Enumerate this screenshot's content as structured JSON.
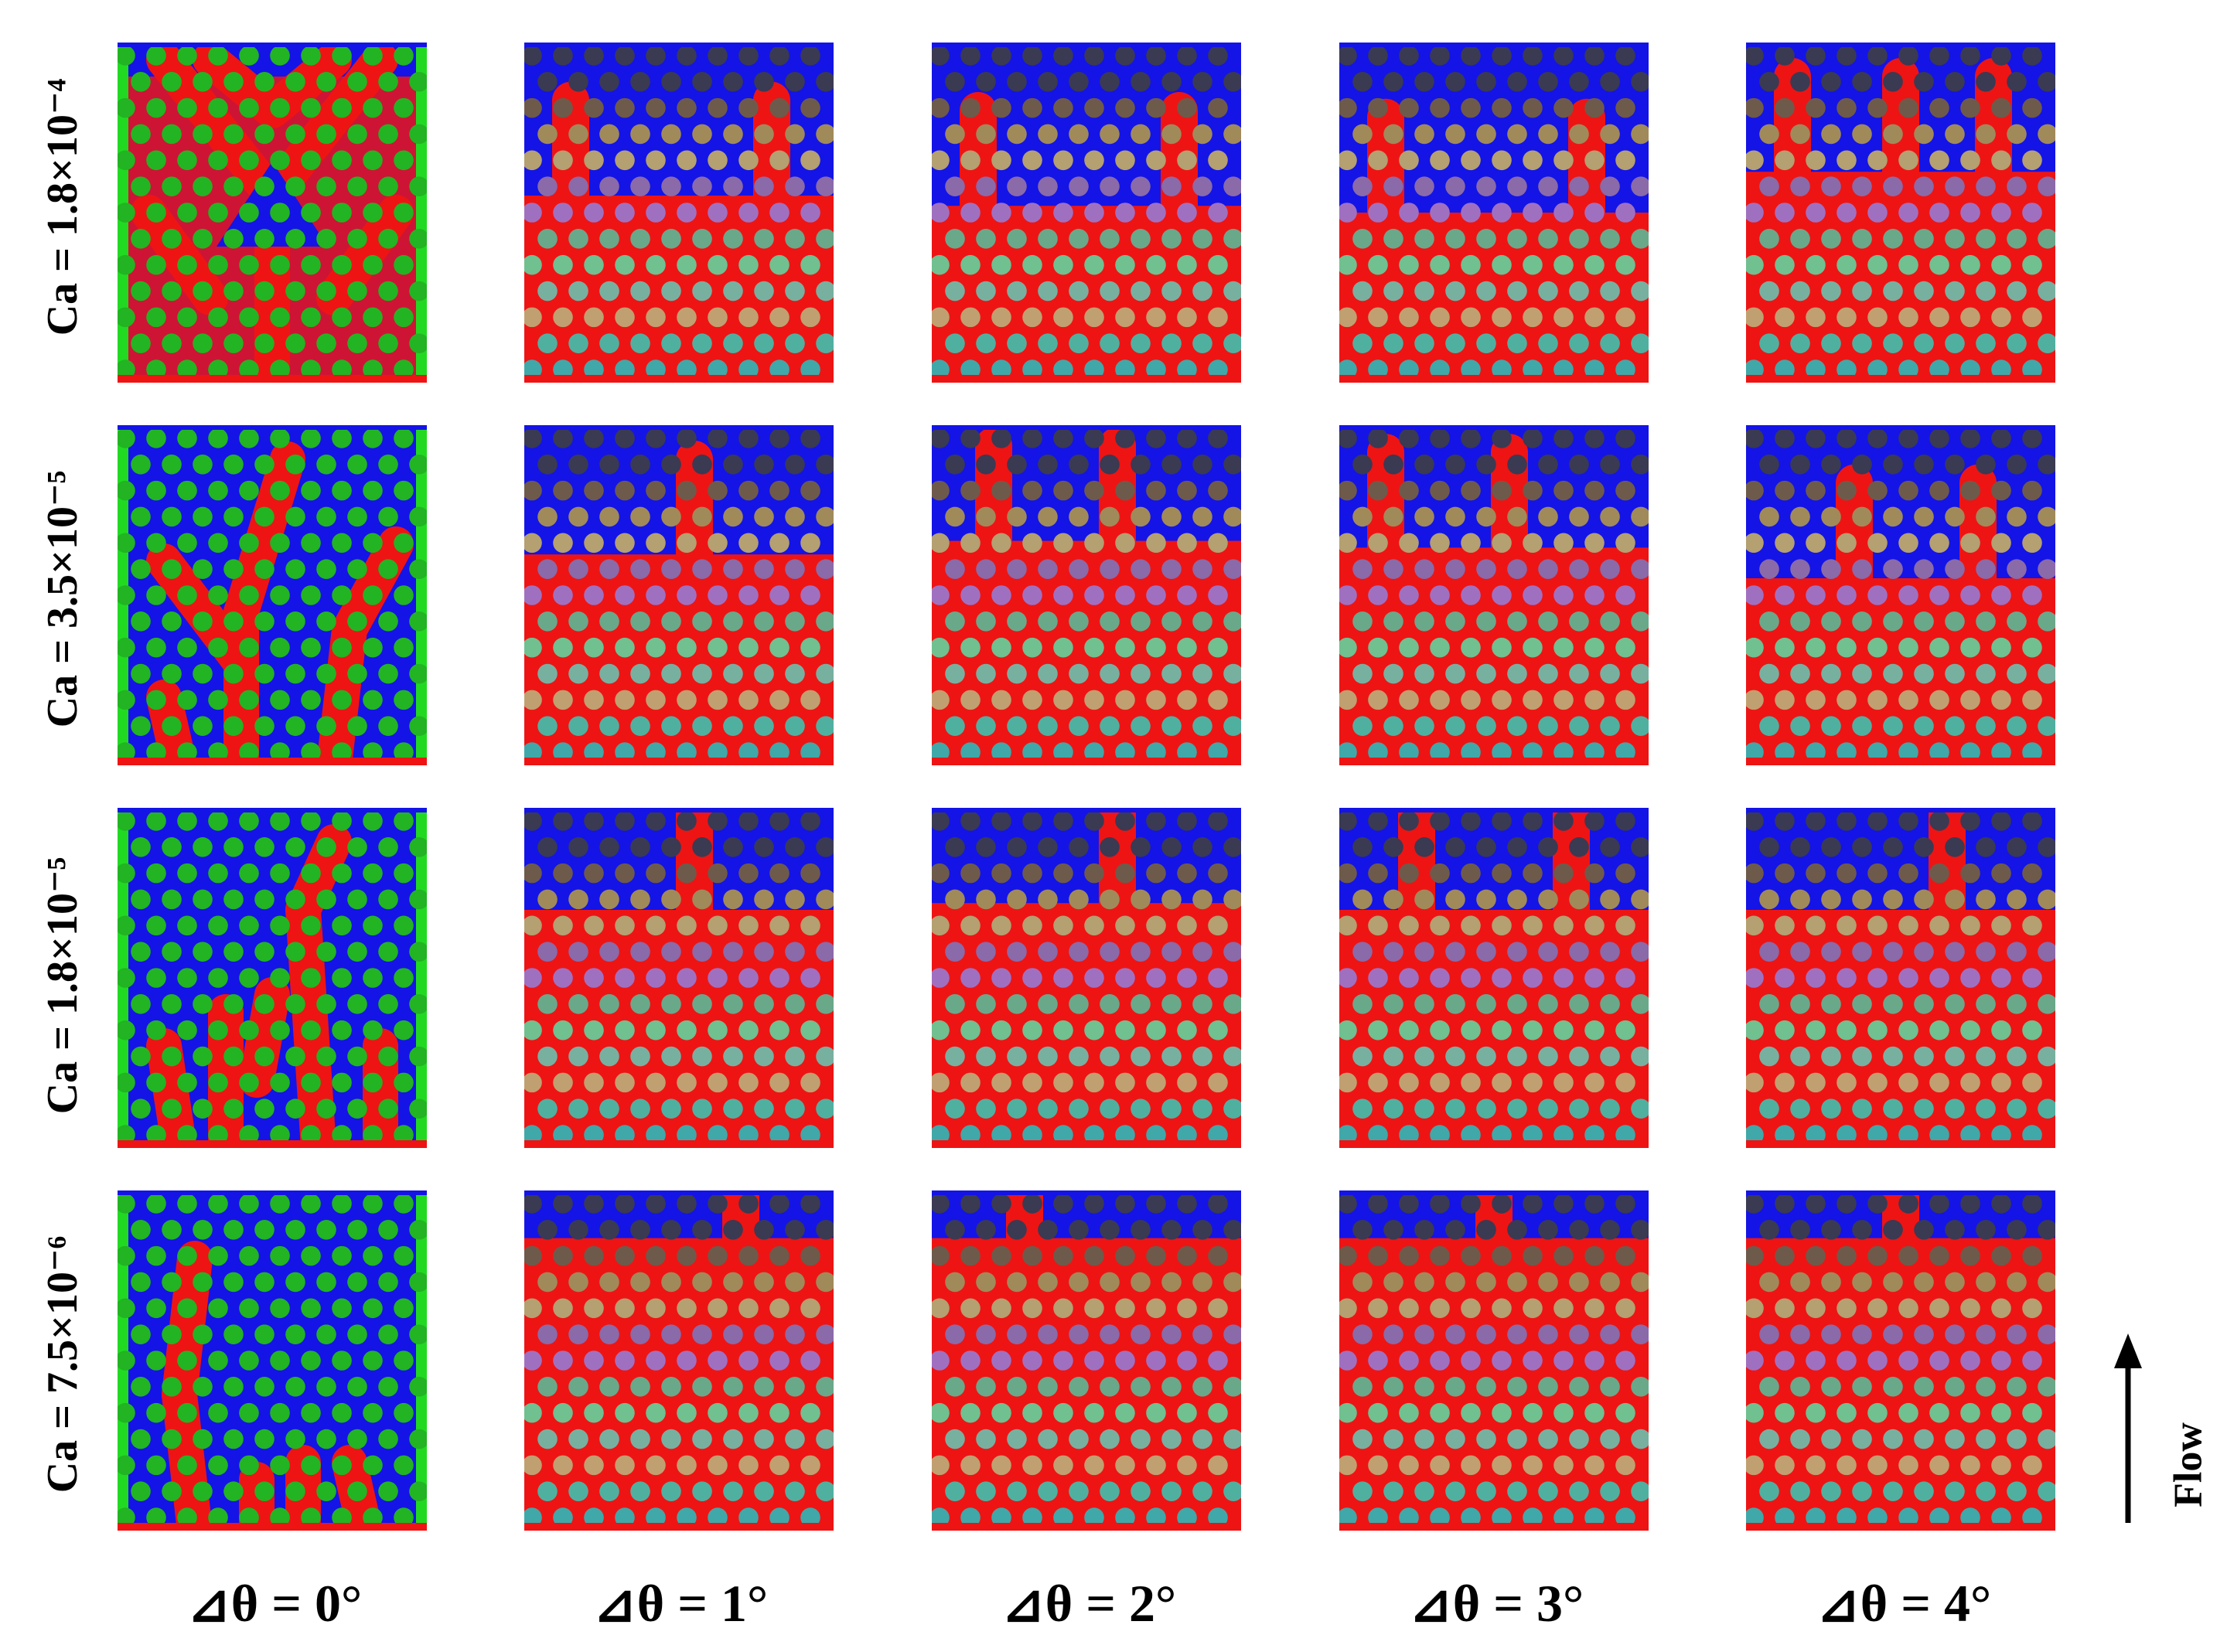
{
  "rows": [
    {
      "label": "Ca = 1.8×10⁻⁴"
    },
    {
      "label": "Ca = 3.5×10⁻⁵"
    },
    {
      "label": "Ca = 1.8×10⁻⁵"
    },
    {
      "label": "Ca = 7.5×10⁻⁶"
    }
  ],
  "columns": [
    {
      "label": "⊿θ = 0°"
    },
    {
      "label": "⊿θ = 1°"
    },
    {
      "label": "⊿θ = 2°"
    },
    {
      "label": "⊿θ = 3°"
    },
    {
      "label": "⊿θ = 4°"
    }
  ],
  "flow": {
    "label": "Flow"
  },
  "colors": {
    "defending_fluid": "#1414e6",
    "invading_fluid": "#ee1414",
    "uniform_grains": "#22b422",
    "uniform_wall": "#22d922",
    "graded_grains": [
      "#3a3a52",
      "#6e5a4a",
      "#a08a5a",
      "#b4a070",
      "#8a6aa8",
      "#a070c0",
      "#6aa88a",
      "#70c090",
      "#78b0a0",
      "#c0a070",
      "#50b0a0",
      "#40a8a8"
    ]
  }
}
